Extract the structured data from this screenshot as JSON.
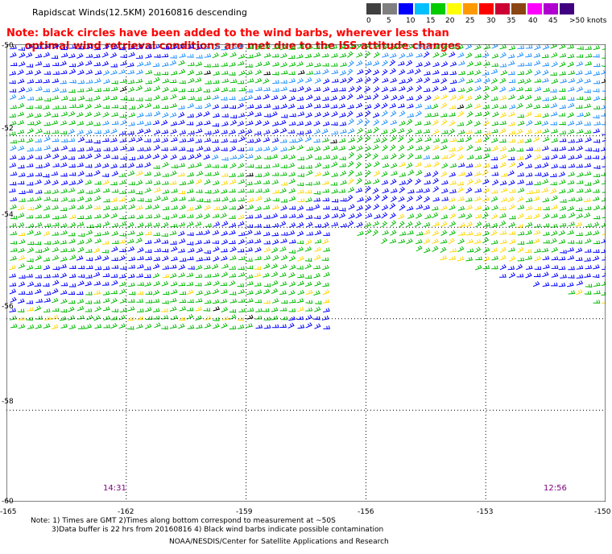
{
  "title": "Rapidscat Winds(12.5KM) 20160816 descending",
  "note_line1": "Note: black circles have been added to the wind barbs, wherever less than",
  "note_line2": "     optimal wind retrieval conditions are met due to the ISS attitude changes",
  "legend": {
    "unit": ">50 knots",
    "colors": [
      "#404040",
      "#7f7f7f",
      "#0000ff",
      "#00bfff",
      "#00cc00",
      "#ffff00",
      "#ff9900",
      "#ff0000",
      "#cc0033",
      "#8b4513",
      "#ff00ff",
      "#b000d0",
      "#400080"
    ],
    "labels": [
      "0",
      "5",
      "10",
      "15",
      "20",
      "25",
      "30",
      "35",
      "40",
      "45"
    ]
  },
  "lat_labels": [
    "-50",
    "-52",
    "-54",
    "-56",
    "-58",
    "-60"
  ],
  "lon_labels": [
    "-165",
    "-162",
    "-159",
    "-156",
    "-153",
    "-150"
  ],
  "pass_times": [
    "14:31",
    "12:56"
  ],
  "footnote_line1": "Note: 1) Times are GMT 2)Times along bottom correspond to measurement at ~50S",
  "footnote_line2": "3)Data buffer is 22 hrs from 20160816 4) Black wind barbs indicate possible contamination",
  "credit": "NOAA/NESDIS/Center for Satellite Applications and Research",
  "map": {
    "lat_range": [
      -60,
      -50
    ],
    "lon_range": [
      -165,
      -150
    ],
    "grid": "dotted",
    "barb_colors": {
      "low": "#0000ff",
      "mid": "#1e90ff",
      "fresh": "#00bb00",
      "strong": "#ffd700",
      "flagged": "#000000"
    }
  }
}
